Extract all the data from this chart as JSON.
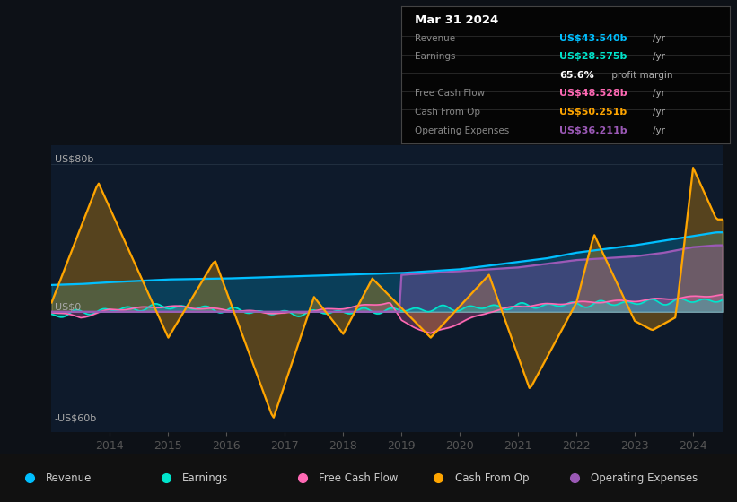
{
  "background_color": "#0d1117",
  "plot_bg_color": "#0e1a2b",
  "x_ticks": [
    2014,
    2015,
    2016,
    2017,
    2018,
    2019,
    2020,
    2021,
    2022,
    2023,
    2024
  ],
  "ylim": [
    -65,
    90
  ],
  "colors": {
    "revenue": "#00bfff",
    "earnings": "#00e5cc",
    "free_cash_flow": "#ff69b4",
    "cash_from_op": "#ffa500",
    "operating_expenses": "#9b59b6"
  },
  "legend": [
    {
      "label": "Revenue",
      "color": "#00bfff"
    },
    {
      "label": "Earnings",
      "color": "#00e5cc"
    },
    {
      "label": "Free Cash Flow",
      "color": "#ff69b4"
    },
    {
      "label": "Cash From Op",
      "color": "#ffa500"
    },
    {
      "label": "Operating Expenses",
      "color": "#9b59b6"
    }
  ],
  "info_box": {
    "date": "Mar 31 2024",
    "rows": [
      {
        "label": "Revenue",
        "value": "US$43.540b",
        "unit": "/yr",
        "color": "#00bfff"
      },
      {
        "label": "Earnings",
        "value": "US$28.575b",
        "unit": "/yr",
        "color": "#00e5cc"
      },
      {
        "label": "",
        "value": "65.6%",
        "unit": " profit margin",
        "color": "#ffffff"
      },
      {
        "label": "Free Cash Flow",
        "value": "US$48.528b",
        "unit": "/yr",
        "color": "#ff69b4"
      },
      {
        "label": "Cash From Op",
        "value": "US$50.251b",
        "unit": "/yr",
        "color": "#ffa500"
      },
      {
        "label": "Operating Expenses",
        "value": "US$36.211b",
        "unit": "/yr",
        "color": "#9b59b6"
      }
    ]
  },
  "y_labels": [
    {
      "text": "US$80b",
      "val": 80
    },
    {
      "text": "US$0",
      "val": 0
    },
    {
      "text": "-US$60b",
      "val": -60
    }
  ]
}
